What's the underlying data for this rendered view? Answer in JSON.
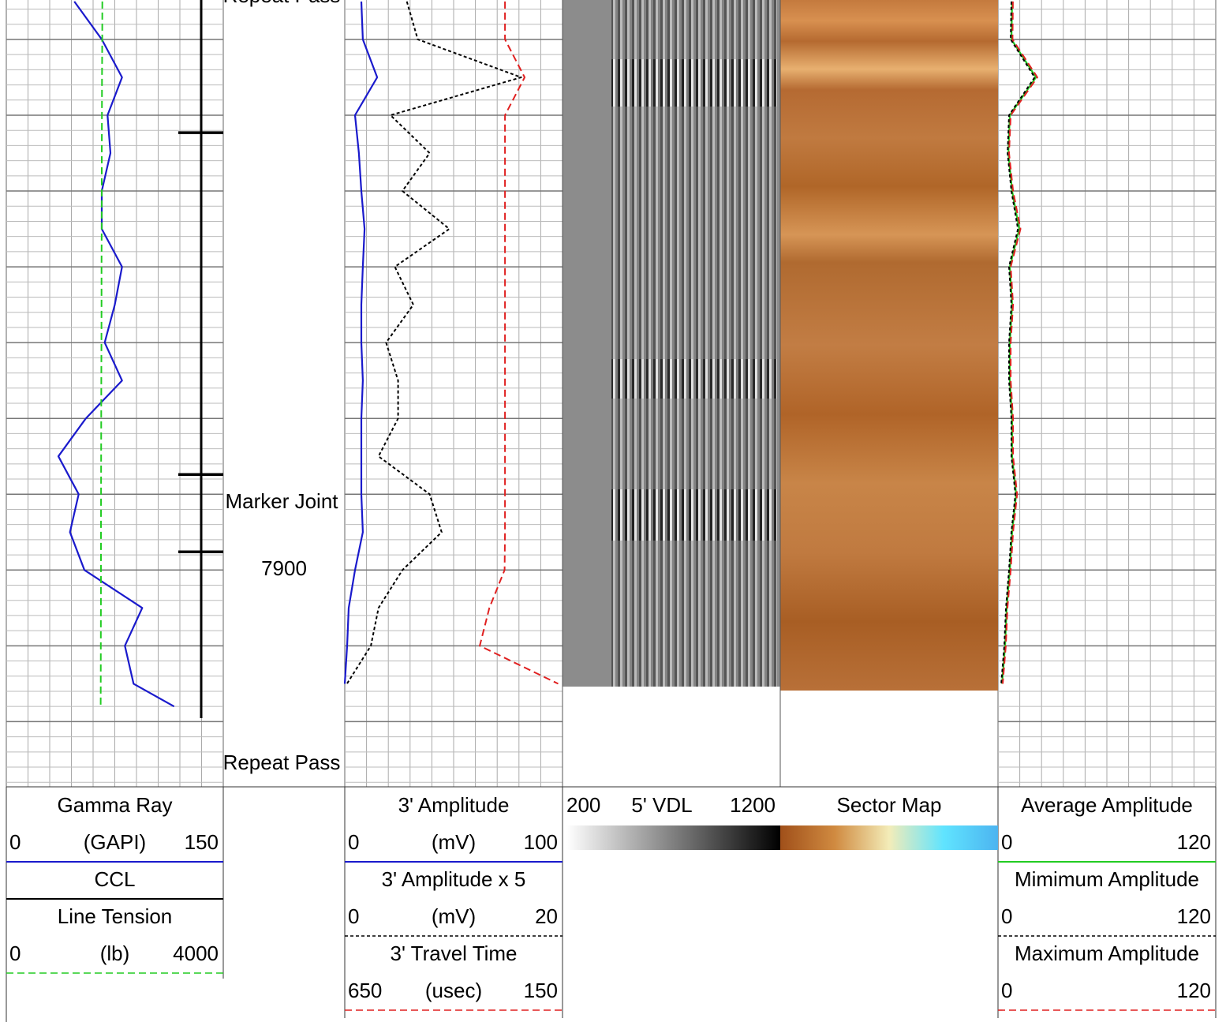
{
  "log": {
    "depth_range": [
      7824.8,
      7928.6
    ],
    "depth_ticks": [
      7830,
      7840,
      7850,
      7860,
      7870,
      7880,
      7890,
      7900,
      7910,
      7920
    ],
    "depth_labels": [
      7900
    ],
    "annotations": [
      "Repeat Pass",
      "Marker Joint",
      "Repeat Pass"
    ],
    "depth": [
      7825,
      7830,
      7835,
      7840,
      7845,
      7850,
      7855,
      7860,
      7865,
      7870,
      7875,
      7880,
      7885,
      7890,
      7895,
      7900,
      7905,
      7910,
      7915,
      7918
    ],
    "tracks": [
      {
        "entries": [
          {
            "name": "Gamma Ray",
            "unit": "(GAPI)",
            "scale": [
              0,
              150
            ],
            "color": "#1a1acc",
            "line": "solid",
            "values": [
              47,
              66,
              80,
              70,
              72,
              66,
              66,
              80,
              75,
              68,
              80,
              55,
              36,
              50,
              44,
              54,
              94,
              82,
              88,
              116
            ]
          },
          {
            "name": "CCL",
            "color": "#000000",
            "line": "solid",
            "collars": [
              7842.3,
              7887.4,
              7897.6
            ]
          },
          {
            "name": "Line Tension",
            "unit": "(lb)",
            "scale": [
              0,
              4000
            ],
            "color": "#22cc22",
            "line": "dashed",
            "values": [
              1770,
              1768,
              1765,
              1763,
              1760,
              1760,
              1758,
              1756,
              1755,
              1754,
              1752,
              1750,
              1748,
              1747,
              1745,
              1745,
              1744,
              1742,
              1741,
              1740
            ]
          }
        ]
      },
      {
        "entries": [
          {
            "name": "3' Amplitude",
            "unit": "(mV)",
            "scale": [
              0,
              100
            ],
            "color": "#1a1acc",
            "line": "solid",
            "values": [
              7.6,
              8.3,
              14.9,
              4.7,
              6.5,
              7.6,
              9.1,
              8.3,
              7.6,
              7.6,
              8.3,
              7.6,
              7.6,
              7.6,
              8.3,
              4.7,
              1.8,
              1.1,
              0,
              null
            ]
          },
          {
            "name": "3' Amplitude x 5",
            "unit": "(mV)",
            "scale": [
              0,
              20
            ],
            "color": "#000000",
            "line": "dotted",
            "values": [
              5.7,
              6.7,
              16.2,
              4.2,
              7.8,
              5.3,
              9.6,
              4.6,
              6.3,
              3.8,
              4.9,
              4.9,
              3.1,
              7.8,
              8.9,
              5.3,
              3.1,
              2.4,
              0.2,
              null
            ]
          },
          {
            "name": "3' Travel Time",
            "unit": "(usec)",
            "scale": [
              650,
              150
            ],
            "color": "#e02020",
            "line": "dashed",
            "values": [
              282,
              282,
              237,
              282,
              282,
              282,
              282,
              282,
              282,
              282,
              282,
              282,
              282,
              282,
              282,
              283,
              318,
              340,
              160,
              null
            ]
          }
        ]
      },
      {
        "entries": [
          {
            "name": "5' VDL",
            "scale": [
              200,
              1200
            ],
            "colors": [
              "#ffffff",
              "#000000"
            ]
          }
        ]
      },
      {
        "entries": [
          {
            "name": "Sector Map",
            "colors": [
              "#a0501a",
              "#d08a40",
              "#f3ecb8",
              "#60e4ff",
              "#4cb4f0"
            ]
          }
        ]
      },
      {
        "entries": [
          {
            "name": "Average Amplitude",
            "scale": [
              0,
              120
            ],
            "color": "#22cc22",
            "line": "solid",
            "values": [
              7.8,
              7.4,
              20.9,
              6.5,
              5.7,
              7.8,
              11.7,
              6.5,
              7.8,
              6.5,
              6.5,
              7.8,
              7.8,
              10,
              7.8,
              6.5,
              4.8,
              3.9,
              2.2,
              null
            ]
          },
          {
            "name": "Mimimum Amplitude",
            "scale": [
              0,
              120
            ],
            "color": "#000000",
            "line": "dotted",
            "values": [
              7.4,
              7.0,
              20.2,
              6.1,
              5.3,
              7.4,
              11.0,
              6.1,
              7.4,
              6.1,
              6.1,
              7.4,
              7.4,
              9.6,
              7.4,
              6.1,
              4.4,
              3.5,
              1.8,
              null
            ]
          },
          {
            "name": "Maximum Amplitude",
            "scale": [
              0,
              120
            ],
            "color": "#e02020",
            "line": "dashed",
            "values": [
              8.2,
              8.0,
              21.7,
              7.0,
              6.1,
              8.3,
              12.4,
              7.0,
              8.3,
              7.0,
              7.0,
              8.3,
              8.3,
              10.5,
              8.3,
              7.0,
              5.2,
              4.3,
              2.6,
              null
            ]
          }
        ]
      }
    ]
  }
}
